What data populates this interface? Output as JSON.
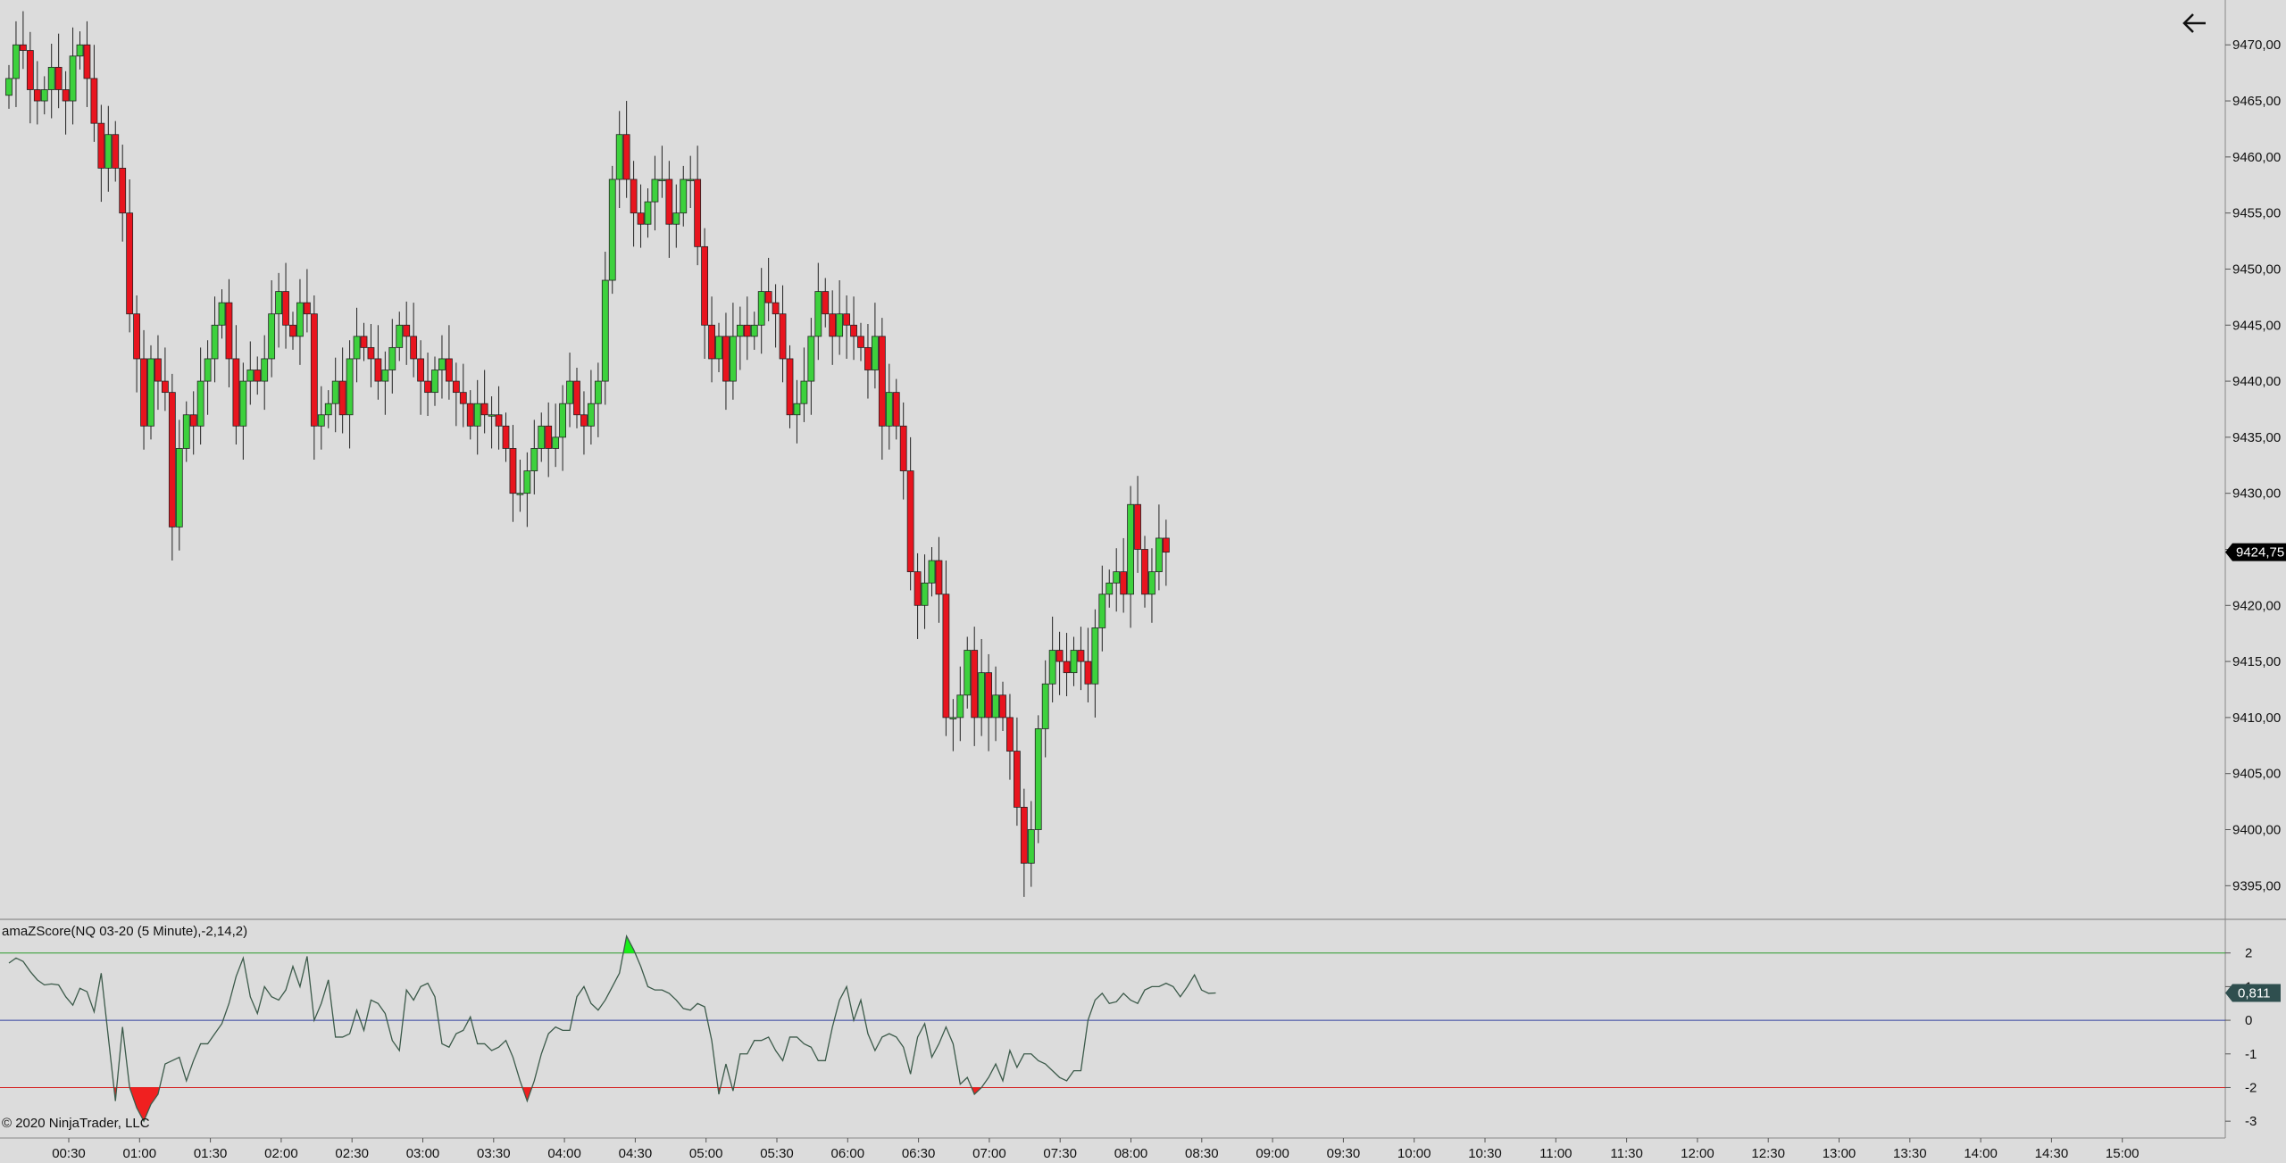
{
  "copyright": "© 2020 NinjaTrader, LLC",
  "indicator_label": "amaZScore(NQ 03-20 (5 Minute),-2,14,2)",
  "back_button_label": "←",
  "colors": {
    "background": "#dcdcdc",
    "up_candle": "#3dd13d",
    "down_candle": "#e8141e",
    "wick": "#222222",
    "zscore_line": "#3c5a4a",
    "upper_band": "#2a9a2a",
    "lower_band": "#d42020",
    "zero_line": "#3040a0",
    "fill_up": "#19f019",
    "fill_down": "#f02020"
  },
  "chart_data": [
    {
      "type": "candlestick",
      "symbol": "NQ 03-20 (5 Minute)",
      "ylim": [
        9392,
        9474
      ],
      "y_ticks": [
        "9470,00",
        "9465,00",
        "9460,00",
        "9455,00",
        "9450,00",
        "9445,00",
        "9440,00",
        "9435,00",
        "9430,00",
        "9425,00",
        "9420,00",
        "9415,00",
        "9410,00",
        "9405,00",
        "9400,00",
        "9395,00"
      ],
      "y_tick_values": [
        9470,
        9465,
        9460,
        9455,
        9450,
        9445,
        9440,
        9435,
        9430,
        9425,
        9420,
        9415,
        9410,
        9405,
        9400,
        9395
      ],
      "last_price_label": "9424,75",
      "last_price": 9424.75,
      "x_labels": [
        "00:30",
        "01:00",
        "01:30",
        "02:00",
        "02:30",
        "03:00",
        "03:30",
        "04:00",
        "04:30",
        "05:00",
        "05:30",
        "06:00",
        "06:30",
        "07:00",
        "07:30",
        "08:00",
        "08:30",
        "09:00",
        "09:30",
        "10:00",
        "10:30",
        "11:00",
        "11:30",
        "12:00",
        "12:30",
        "13:00",
        "13:30",
        "14:00",
        "14:30",
        "15:00"
      ],
      "close": [
        9467,
        9470,
        9469.5,
        9466,
        9465,
        9466,
        9468,
        9466,
        9465,
        9469,
        9470,
        9467,
        9463,
        9459,
        9462,
        9459,
        9455,
        9446,
        9442,
        9436,
        9442,
        9440,
        9439,
        9427,
        9434,
        9437,
        9436,
        9440,
        9442,
        9445,
        9447,
        9442,
        9436,
        9440,
        9441,
        9440,
        9442,
        9446,
        9448,
        9445,
        9444,
        9447,
        9446,
        9436,
        9437,
        9438,
        9440,
        9437,
        9442,
        9444,
        9443,
        9442,
        9440,
        9441,
        9443,
        9445,
        9444,
        9442,
        9440,
        9439,
        9441,
        9442,
        9440,
        9439,
        9438,
        9436,
        9438,
        9437,
        9437,
        9436,
        9434,
        9430,
        9430,
        9432,
        9434,
        9436,
        9434,
        9435,
        9438,
        9440,
        9437,
        9436,
        9438,
        9440,
        9449,
        9458,
        9462,
        9458,
        9455,
        9454,
        9456,
        9458,
        9458,
        9454,
        9455,
        9458,
        9458,
        9452,
        9445,
        9442,
        9444,
        9440,
        9444,
        9445,
        9444,
        9445,
        9448,
        9447,
        9446,
        9442,
        9437,
        9438,
        9440,
        9444,
        9448,
        9446,
        9444,
        9446,
        9445,
        9444,
        9443,
        9441,
        9444,
        9436,
        9439,
        9436,
        9432,
        9423,
        9420,
        9422,
        9424,
        9421,
        9410,
        9410,
        9412,
        9416,
        9410,
        9414,
        9410,
        9412,
        9410,
        9407,
        9402,
        9397,
        9400,
        9409,
        9413,
        9416,
        9415,
        9414,
        9416,
        9415,
        9413,
        9418,
        9421,
        9422,
        9423,
        9421,
        9429,
        9425,
        9421,
        9423,
        9426,
        9424.75
      ],
      "zscore": {
        "ylim": [
          -3.5,
          3
        ],
        "y_ticks": [
          "2",
          "1",
          "0",
          "-1",
          "-2",
          "-3"
        ],
        "y_tick_values": [
          2,
          1,
          0,
          -1,
          -2,
          -3
        ],
        "upper": 2,
        "lower": -2,
        "last_value_label": "0,811",
        "last_value": 0.811,
        "values": [
          1.7,
          1.85,
          1.75,
          1.45,
          1.2,
          1.05,
          1.08,
          1.05,
          0.7,
          0.45,
          0.95,
          0.85,
          0.25,
          1.4,
          -0.5,
          -2.4,
          -0.2,
          -2.0,
          -2.6,
          -3.0,
          -2.5,
          -2.2,
          -1.3,
          -1.2,
          -1.1,
          -1.8,
          -1.2,
          -0.7,
          -0.7,
          -0.4,
          -0.1,
          0.5,
          1.3,
          1.85,
          0.7,
          0.2,
          1.0,
          0.7,
          0.6,
          0.9,
          1.6,
          1.0,
          1.9,
          0.0,
          0.5,
          1.2,
          -0.5,
          -0.5,
          -0.4,
          0.3,
          -0.3,
          0.6,
          0.5,
          0.2,
          -0.6,
          -0.9,
          0.9,
          0.6,
          1.0,
          1.1,
          0.7,
          -0.7,
          -0.8,
          -0.4,
          -0.3,
          0.1,
          -0.7,
          -0.7,
          -0.9,
          -0.8,
          -0.6,
          -1.1,
          -1.8,
          -2.4,
          -1.8,
          -1.0,
          -0.4,
          -0.2,
          -0.3,
          -0.3,
          0.7,
          1.0,
          0.5,
          0.3,
          0.6,
          1.0,
          1.4,
          2.5,
          2.1,
          1.6,
          1.0,
          0.9,
          0.9,
          0.8,
          0.6,
          0.35,
          0.3,
          0.5,
          0.4,
          -0.6,
          -2.2,
          -1.3,
          -2.1,
          -1.0,
          -1.0,
          -0.6,
          -0.6,
          -0.5,
          -0.9,
          -1.2,
          -0.5,
          -0.5,
          -0.7,
          -0.8,
          -1.2,
          -1.2,
          -0.2,
          0.6,
          1.0,
          0.0,
          0.6,
          -0.4,
          -0.9,
          -0.5,
          -0.4,
          -0.5,
          -0.8,
          -1.6,
          -0.5,
          -0.1,
          -1.1,
          -0.7,
          -0.2,
          -0.7,
          -1.9,
          -1.7,
          -2.2,
          -2.0,
          -1.7,
          -1.3,
          -1.8,
          -0.9,
          -1.4,
          -1.0,
          -1.0,
          -1.2,
          -1.3,
          -1.5,
          -1.7,
          -1.8,
          -1.5,
          -1.5,
          0.0,
          0.6,
          0.8,
          0.5,
          0.55,
          0.8,
          0.6,
          0.5,
          0.9,
          1.0,
          1.0,
          1.1,
          1.0,
          0.7,
          1.0,
          1.35,
          0.9,
          0.8,
          0.811
        ],
        "x_indices_note": ""
      }
    }
  ]
}
